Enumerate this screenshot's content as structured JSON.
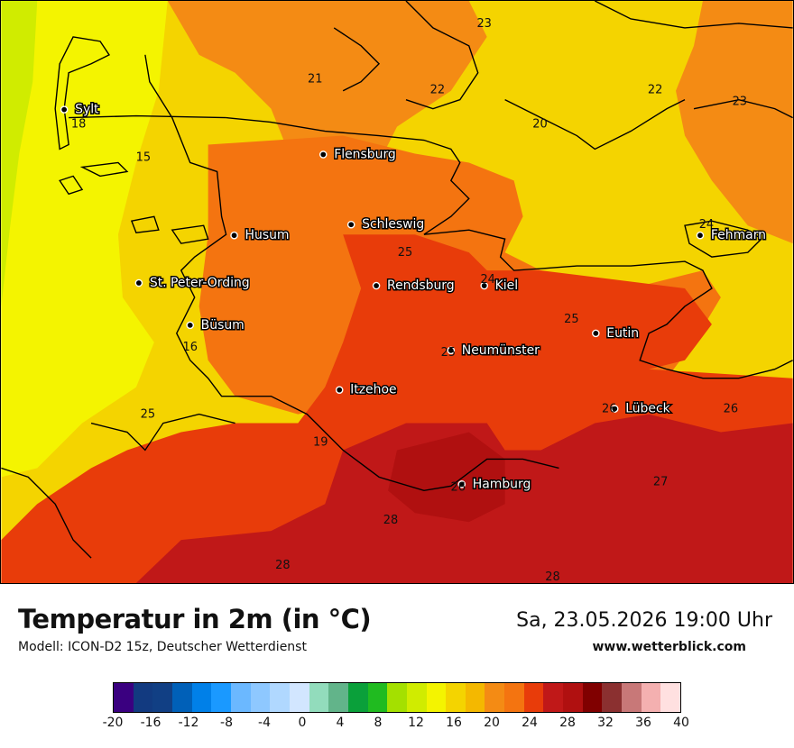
{
  "map": {
    "cities": [
      {
        "name": "Sylt",
        "id": "sylt"
      },
      {
        "name": "Flensburg",
        "id": "flensburg"
      },
      {
        "name": "Husum",
        "id": "husum"
      },
      {
        "name": "Schleswig",
        "id": "schleswig"
      },
      {
        "name": "Fehmarn",
        "id": "fehmarn"
      },
      {
        "name": "St. Peter-Ording",
        "id": "st-peter-ording"
      },
      {
        "name": "Rendsburg",
        "id": "rendsburg"
      },
      {
        "name": "Kiel",
        "id": "kiel"
      },
      {
        "name": "Büsum",
        "id": "buesum"
      },
      {
        "name": "Eutin",
        "id": "eutin"
      },
      {
        "name": "Neumünster",
        "id": "neumuenster"
      },
      {
        "name": "Itzehoe",
        "id": "itzehoe"
      },
      {
        "name": "Lübeck",
        "id": "luebeck"
      },
      {
        "name": "Hamburg",
        "id": "hamburg"
      }
    ],
    "isolines": [
      "23",
      "21",
      "22",
      "22",
      "23",
      "20",
      "18",
      "15",
      "24",
      "25",
      "24",
      "25",
      "16",
      "25",
      "25",
      "26",
      "19",
      "26",
      "27",
      "26",
      "28",
      "28",
      "28"
    ]
  },
  "footer": {
    "title": "Temperatur in 2m (in °C)",
    "subtitle": "Modell: ICON-D2 15z, Deutscher Wetterdienst",
    "datetime": "Sa, 23.05.2026 19:00 Uhr",
    "website": "www.wetterblick.com"
  },
  "legend": {
    "colors": [
      "#3a0080",
      "#123a80",
      "#113f84",
      "#0060b8",
      "#0080e8",
      "#1a99ff",
      "#6bb8ff",
      "#8ec8ff",
      "#b0d8ff",
      "#d2e6ff",
      "#92dcbc",
      "#62b48a",
      "#0aa03a",
      "#20bb20",
      "#a4e000",
      "#d0ec00",
      "#f4f400",
      "#f4d400",
      "#f4b800",
      "#f48b14",
      "#f47410",
      "#e83c0a",
      "#c01818",
      "#b01010",
      "#800000",
      "#8b3030",
      "#c87878",
      "#f4b0b0",
      "#ffe0e0"
    ],
    "ticks": [
      "-20",
      "-16",
      "-12",
      "-8",
      "-4",
      "0",
      "4",
      "8",
      "12",
      "16",
      "20",
      "24",
      "28",
      "32",
      "36",
      "40"
    ]
  }
}
